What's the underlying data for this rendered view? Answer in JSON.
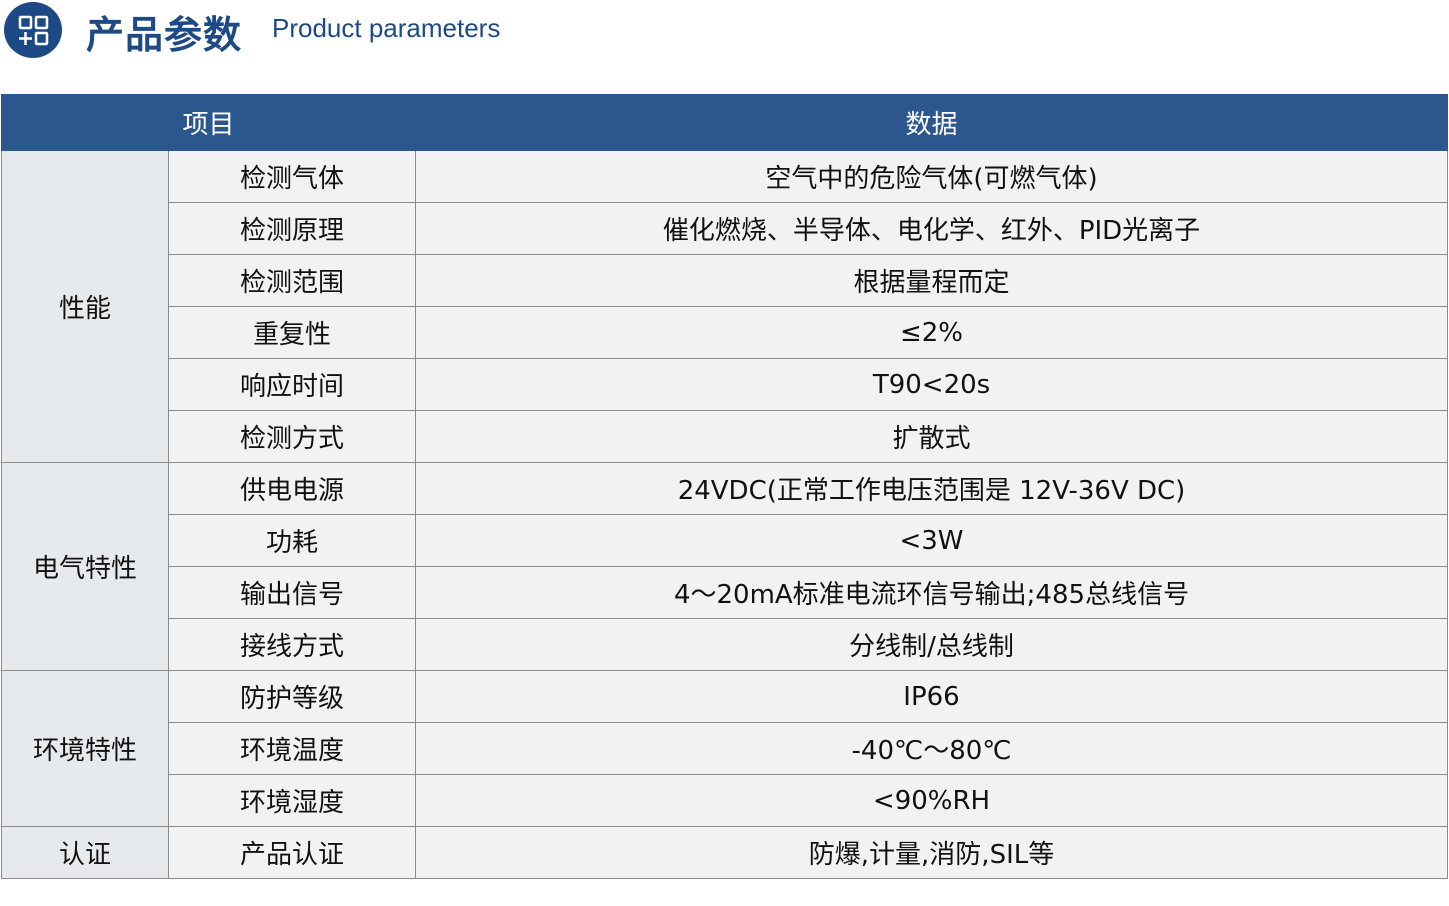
{
  "header": {
    "title": "产品参数",
    "subtitle": "Product parameters",
    "icon": "apps-add-icon",
    "accent": "#1d4a85"
  },
  "table": {
    "columns": [
      "项目",
      "数据"
    ],
    "groups": [
      {
        "name": "性能",
        "rows": [
          [
            "检测气体",
            "空气中的危险气体(可燃气体)"
          ],
          [
            "检测原理",
            "催化燃烧、半导体、电化学、红外、PID光离子"
          ],
          [
            "检测范围",
            "根据量程而定"
          ],
          [
            "重复性",
            "≤2%"
          ],
          [
            "响应时间",
            "T90<20s"
          ],
          [
            "检测方式",
            "扩散式"
          ]
        ]
      },
      {
        "name": "电气特性",
        "rows": [
          [
            "供电电源",
            "24VDC(正常工作电压范围是 12V-36V DC)"
          ],
          [
            "功耗",
            "<3W"
          ],
          [
            "输出信号",
            "4～20mA标准电流环信号输出;485总线信号"
          ],
          [
            "接线方式",
            "分线制/总线制"
          ]
        ]
      },
      {
        "name": "环境特性",
        "rows": [
          [
            "防护等级",
            "IP66"
          ],
          [
            "环境温度",
            "-40℃～80℃"
          ],
          [
            "环境湿度",
            "<90%RH"
          ]
        ]
      },
      {
        "name": "认证",
        "rows": [
          [
            "产品认证",
            "防爆,计量,消防,SIL等"
          ]
        ]
      }
    ]
  }
}
